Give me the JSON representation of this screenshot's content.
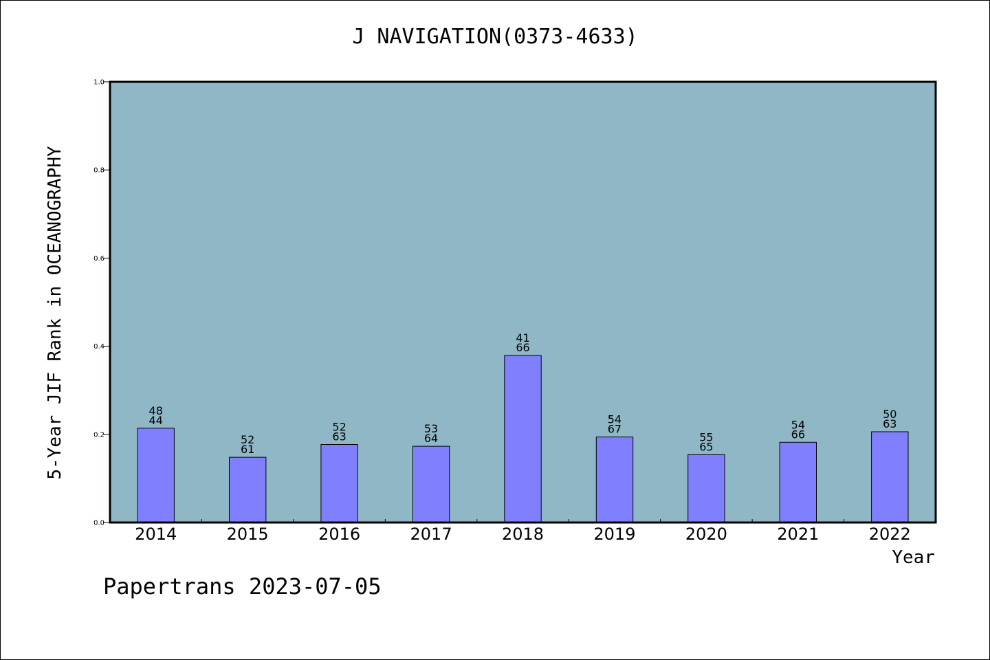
{
  "chart_data": {
    "type": "bar",
    "title": "J NAVIGATION(0373-4633)",
    "xlabel": "Year",
    "ylabel": "5-Year JIF Rank in OCEANOGRAPHY",
    "categories": [
      "2014",
      "2015",
      "2016",
      "2017",
      "2018",
      "2019",
      "2020",
      "2021",
      "2022"
    ],
    "values": [
      0.214,
      0.148,
      0.177,
      0.173,
      0.379,
      0.194,
      0.154,
      0.182,
      0.206
    ],
    "bar_labels": {
      "top": [
        "48",
        "52",
        "52",
        "53",
        "41",
        "54",
        "55",
        "54",
        "50"
      ],
      "bottom": [
        "44",
        "61",
        "63",
        "64",
        "66",
        "67",
        "65",
        "66",
        "63"
      ]
    },
    "ylim": [
      0,
      1.0
    ],
    "yticks": [
      "0.0",
      "0.2",
      "0.4",
      "0.6",
      "0.8",
      "1.0"
    ],
    "grid": false,
    "colors": {
      "background": "#8fb7c5",
      "bar": "#8080ff",
      "axis": "#000000"
    }
  },
  "footer": "Papertrans 2023-07-05"
}
